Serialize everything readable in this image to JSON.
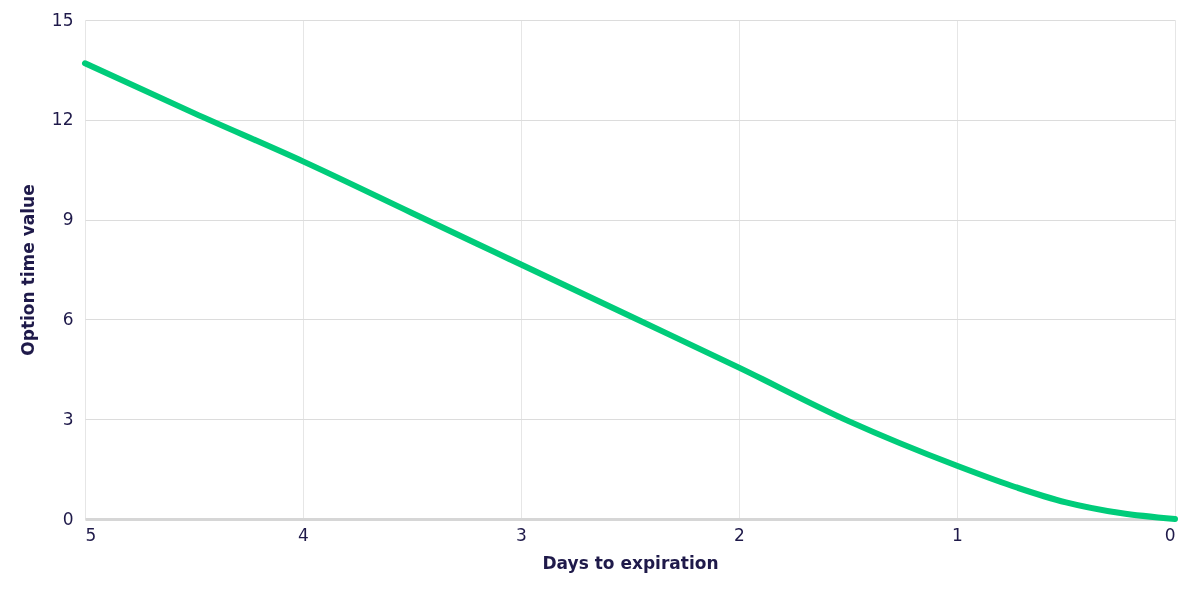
{
  "chart_data": {
    "type": "line",
    "xlabel": "Days to expiration",
    "ylabel": "Option time value",
    "x": [
      5,
      4.5,
      4,
      3.5,
      3,
      2.5,
      2,
      1.5,
      1,
      0.75,
      0.5,
      0.25,
      0
    ],
    "series": [
      {
        "color": "#00cc7a",
        "values": [
          13.7,
          12.2,
          10.75,
          9.2,
          7.65,
          6.1,
          4.55,
          2.95,
          1.6,
          1.0,
          0.5,
          0.18,
          0
        ]
      }
    ],
    "xlim": [
      5,
      0
    ],
    "xticks": [
      5,
      4,
      3,
      2,
      1,
      0
    ],
    "ylim": [
      0,
      15
    ],
    "yticks": [
      0,
      3,
      6,
      9,
      12,
      15
    ],
    "grid": true,
    "marker": "none",
    "line_style": "solid"
  }
}
